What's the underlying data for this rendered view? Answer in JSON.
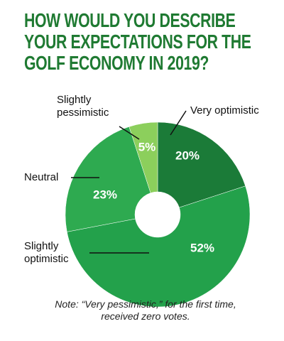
{
  "chart_data": {
    "type": "donut",
    "title": "HOW WOULD YOU DESCRIBE YOUR EXPECTATIONS FOR THE GOLF ECONOMY IN 2019?",
    "categories": [
      "Very optimistic",
      "Slightly optimistic",
      "Neutral",
      "Slightly pessimistic"
    ],
    "values": [
      20,
      52,
      23,
      5
    ],
    "value_labels": [
      "20%",
      "52%",
      "23%",
      "5%"
    ],
    "colors": [
      "#1b7b38",
      "#23a14b",
      "#2eaa50",
      "#8ccf5c"
    ],
    "note": "Note: “Very pessimistic,” for the first time, received zero votes."
  }
}
